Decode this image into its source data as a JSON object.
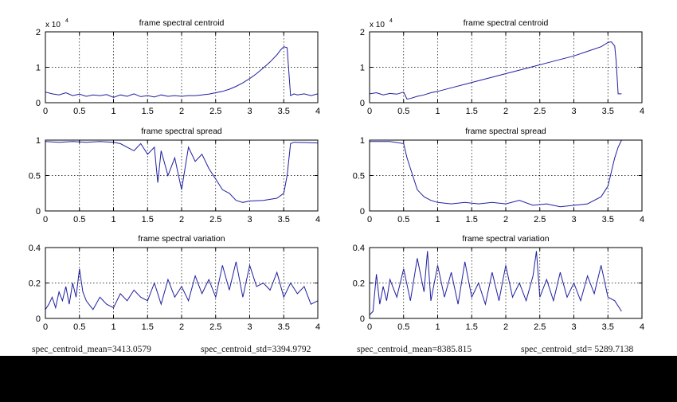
{
  "colors": {
    "line": "#1f1fa0",
    "axis": "#000000",
    "grid": "#000000",
    "background": "#ffffff",
    "mask": "#000000"
  },
  "stats": {
    "left_mean": "spec_centroid_mean=3413.0579",
    "left_std": "spec_centroid_std=3394.9792",
    "right_mean": "spec_centroid_mean=8385.815",
    "right_std": "spec_centroid_std= 5289.7138"
  },
  "chart_data": [
    {
      "type": "line",
      "title": "frame spectral centroid",
      "xlabel": "",
      "ylabel": "",
      "multiplier": "x 10",
      "xlim": [
        0,
        4
      ],
      "ylim": [
        0,
        2
      ],
      "xticks": [
        0,
        0.5,
        1,
        1.5,
        2,
        2.5,
        3,
        3.5,
        4
      ],
      "yticks": [
        0,
        1,
        2
      ],
      "xtick_labels": [
        "0",
        "0.5",
        "1",
        "1.5",
        "2",
        "2.5",
        "3",
        "3.5",
        "4"
      ],
      "ytick_labels": [
        "0",
        "1",
        "2"
      ],
      "grid": true,
      "series": [
        {
          "x": [
            0,
            0.1,
            0.2,
            0.3,
            0.4,
            0.5,
            0.6,
            0.7,
            0.8,
            0.9,
            1.0,
            1.1,
            1.2,
            1.3,
            1.4,
            1.5,
            1.6,
            1.7,
            1.8,
            1.9,
            2.0,
            2.1,
            2.2,
            2.3,
            2.4,
            2.5,
            2.6,
            2.7,
            2.8,
            2.9,
            3.0,
            3.1,
            3.2,
            3.3,
            3.4,
            3.45,
            3.5,
            3.55,
            3.6,
            3.65,
            3.7,
            3.8,
            3.9,
            4.0
          ],
          "y": [
            0.3,
            0.25,
            0.22,
            0.28,
            0.2,
            0.24,
            0.18,
            0.22,
            0.2,
            0.23,
            0.15,
            0.22,
            0.18,
            0.25,
            0.17,
            0.2,
            0.16,
            0.22,
            0.18,
            0.2,
            0.18,
            0.2,
            0.2,
            0.22,
            0.24,
            0.28,
            0.32,
            0.38,
            0.46,
            0.56,
            0.68,
            0.82,
            0.98,
            1.15,
            1.35,
            1.48,
            1.58,
            1.55,
            0.2,
            0.25,
            0.22,
            0.25,
            0.2,
            0.25
          ]
        }
      ]
    },
    {
      "type": "line",
      "title": "frame spectral centroid",
      "xlabel": "",
      "ylabel": "",
      "multiplier": "x 10",
      "xlim": [
        0,
        4
      ],
      "ylim": [
        0,
        2
      ],
      "xticks": [
        0,
        0.5,
        1,
        1.5,
        2,
        2.5,
        3,
        3.5,
        4
      ],
      "yticks": [
        0,
        1,
        2
      ],
      "xtick_labels": [
        "0",
        "0.5",
        "1",
        "1.5",
        "2",
        "2.5",
        "3",
        "3.5",
        "4"
      ],
      "ytick_labels": [
        "0",
        "1",
        "2"
      ],
      "grid": true,
      "series": [
        {
          "x": [
            0,
            0.1,
            0.2,
            0.3,
            0.4,
            0.5,
            0.55,
            0.6,
            0.7,
            0.8,
            0.9,
            1.0,
            1.2,
            1.4,
            1.6,
            1.8,
            2.0,
            2.2,
            2.4,
            2.6,
            2.8,
            3.0,
            3.2,
            3.4,
            3.5,
            3.55,
            3.6,
            3.62,
            3.65,
            3.7
          ],
          "y": [
            0.25,
            0.28,
            0.22,
            0.26,
            0.24,
            0.3,
            0.1,
            0.12,
            0.18,
            0.22,
            0.28,
            0.32,
            0.42,
            0.52,
            0.62,
            0.72,
            0.82,
            0.92,
            1.02,
            1.12,
            1.22,
            1.32,
            1.45,
            1.58,
            1.7,
            1.72,
            1.6,
            1.2,
            0.25,
            0.25
          ]
        }
      ]
    },
    {
      "type": "line",
      "title": "frame spectral spread",
      "xlabel": "",
      "ylabel": "",
      "xlim": [
        0,
        4
      ],
      "ylim": [
        0,
        1
      ],
      "xticks": [
        0,
        0.5,
        1,
        1.5,
        2,
        2.5,
        3,
        3.5,
        4
      ],
      "yticks": [
        0,
        0.5,
        1
      ],
      "xtick_labels": [
        "0",
        "0.5",
        "1",
        "1.5",
        "2",
        "2.5",
        "3",
        "3.5",
        "4"
      ],
      "ytick_labels": [
        "0",
        "0.5",
        "1"
      ],
      "grid": true,
      "series": [
        {
          "x": [
            0,
            0.2,
            0.4,
            0.6,
            0.8,
            1.0,
            1.1,
            1.2,
            1.3,
            1.4,
            1.5,
            1.6,
            1.65,
            1.7,
            1.8,
            1.9,
            2.0,
            2.1,
            2.2,
            2.3,
            2.4,
            2.5,
            2.6,
            2.7,
            2.8,
            2.9,
            3.0,
            3.2,
            3.4,
            3.5,
            3.55,
            3.6,
            3.65,
            4.0
          ],
          "y": [
            0.98,
            0.97,
            0.98,
            0.97,
            0.98,
            0.97,
            0.95,
            0.9,
            0.85,
            0.95,
            0.8,
            0.9,
            0.4,
            0.85,
            0.5,
            0.75,
            0.3,
            0.9,
            0.7,
            0.8,
            0.6,
            0.45,
            0.3,
            0.25,
            0.15,
            0.12,
            0.14,
            0.15,
            0.18,
            0.25,
            0.5,
            0.95,
            0.97,
            0.96
          ]
        }
      ]
    },
    {
      "type": "line",
      "title": "frame spectral spread",
      "xlabel": "",
      "ylabel": "",
      "xlim": [
        0,
        4
      ],
      "ylim": [
        0,
        1
      ],
      "xticks": [
        0,
        0.5,
        1,
        1.5,
        2,
        2.5,
        3,
        3.5,
        4
      ],
      "yticks": [
        0,
        0.5,
        1
      ],
      "xtick_labels": [
        "0",
        "0.5",
        "1",
        "1.5",
        "2",
        "2.5",
        "3",
        "3.5",
        "4"
      ],
      "ytick_labels": [
        "0",
        "0.5",
        "1"
      ],
      "grid": true,
      "series": [
        {
          "x": [
            0,
            0.3,
            0.5,
            0.55,
            0.6,
            0.65,
            0.7,
            0.8,
            0.9,
            1.0,
            1.2,
            1.4,
            1.6,
            1.8,
            2.0,
            2.2,
            2.4,
            2.6,
            2.8,
            3.0,
            3.2,
            3.4,
            3.5,
            3.6,
            3.65,
            3.7
          ],
          "y": [
            0.98,
            0.98,
            0.95,
            0.75,
            0.6,
            0.45,
            0.3,
            0.2,
            0.15,
            0.12,
            0.1,
            0.12,
            0.1,
            0.12,
            0.1,
            0.15,
            0.08,
            0.1,
            0.06,
            0.08,
            0.1,
            0.2,
            0.35,
            0.75,
            0.9,
            1.0
          ]
        }
      ]
    },
    {
      "type": "line",
      "title": "frame spectral variation",
      "xlabel": "",
      "ylabel": "",
      "xlim": [
        0,
        4
      ],
      "ylim": [
        0,
        0.4
      ],
      "xticks": [
        0,
        0.5,
        1,
        1.5,
        2,
        2.5,
        3,
        3.5,
        4
      ],
      "yticks": [
        0,
        0.2,
        0.4
      ],
      "xtick_labels": [
        "0",
        "0.5",
        "1",
        "1.5",
        "2",
        "2.5",
        "3",
        "3.5",
        "4"
      ],
      "ytick_labels": [
        "0",
        "0.2",
        "0.4"
      ],
      "grid": true,
      "series": [
        {
          "x": [
            0,
            0.05,
            0.1,
            0.15,
            0.2,
            0.25,
            0.3,
            0.35,
            0.4,
            0.45,
            0.5,
            0.55,
            0.6,
            0.7,
            0.8,
            0.9,
            1.0,
            1.1,
            1.2,
            1.3,
            1.4,
            1.5,
            1.6,
            1.7,
            1.8,
            1.9,
            2.0,
            2.1,
            2.2,
            2.3,
            2.4,
            2.5,
            2.6,
            2.7,
            2.8,
            2.9,
            3.0,
            3.1,
            3.2,
            3.3,
            3.4,
            3.5,
            3.6,
            3.7,
            3.8,
            3.9,
            4.0
          ],
          "y": [
            0.05,
            0.08,
            0.12,
            0.06,
            0.15,
            0.1,
            0.18,
            0.08,
            0.2,
            0.12,
            0.28,
            0.15,
            0.1,
            0.05,
            0.12,
            0.08,
            0.06,
            0.14,
            0.1,
            0.16,
            0.12,
            0.1,
            0.2,
            0.08,
            0.22,
            0.12,
            0.18,
            0.1,
            0.24,
            0.14,
            0.22,
            0.12,
            0.3,
            0.16,
            0.32,
            0.12,
            0.3,
            0.18,
            0.2,
            0.16,
            0.26,
            0.12,
            0.2,
            0.14,
            0.18,
            0.08,
            0.1
          ]
        }
      ]
    },
    {
      "type": "line",
      "title": "frame spectral variation",
      "xlabel": "",
      "ylabel": "",
      "xlim": [
        0,
        4
      ],
      "ylim": [
        0,
        0.4
      ],
      "xticks": [
        0,
        0.5,
        1,
        1.5,
        2,
        2.5,
        3,
        3.5,
        4
      ],
      "yticks": [
        0,
        0.2,
        0.4
      ],
      "xtick_labels": [
        "0",
        "0.5",
        "1",
        "1.5",
        "2",
        "2.5",
        "3",
        "3.5",
        "4"
      ],
      "ytick_labels": [
        "0",
        "0.2",
        "0.4"
      ],
      "grid": true,
      "series": [
        {
          "x": [
            0,
            0.05,
            0.1,
            0.15,
            0.2,
            0.25,
            0.3,
            0.4,
            0.5,
            0.6,
            0.7,
            0.8,
            0.85,
            0.9,
            1.0,
            1.1,
            1.2,
            1.3,
            1.4,
            1.5,
            1.6,
            1.7,
            1.8,
            1.9,
            2.0,
            2.1,
            2.2,
            2.3,
            2.4,
            2.45,
            2.5,
            2.6,
            2.7,
            2.8,
            2.9,
            3.0,
            3.1,
            3.2,
            3.3,
            3.4,
            3.5,
            3.6,
            3.7
          ],
          "y": [
            0.02,
            0.04,
            0.25,
            0.08,
            0.18,
            0.1,
            0.22,
            0.12,
            0.28,
            0.1,
            0.34,
            0.15,
            0.38,
            0.1,
            0.3,
            0.12,
            0.26,
            0.08,
            0.32,
            0.12,
            0.2,
            0.08,
            0.26,
            0.1,
            0.3,
            0.12,
            0.2,
            0.1,
            0.24,
            0.38,
            0.12,
            0.22,
            0.1,
            0.26,
            0.12,
            0.2,
            0.1,
            0.24,
            0.14,
            0.3,
            0.12,
            0.1,
            0.04
          ]
        }
      ]
    }
  ]
}
